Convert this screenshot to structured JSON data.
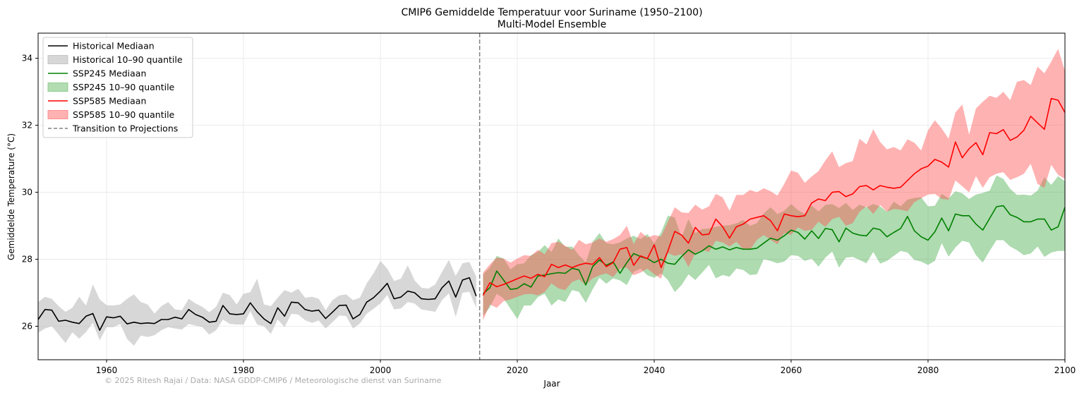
{
  "chart_data": {
    "type": "line",
    "title": "CMIP6 Gemiddelde Temperatuur voor Suriname (1950–2100)",
    "subtitle": "Multi-Model Ensemble",
    "xlabel": "Jaar",
    "ylabel": "Gemiddelde Temperature (°C)",
    "xlim": [
      1950,
      2100
    ],
    "ylim": [
      25.0,
      34.75
    ],
    "xticks": [
      1960,
      1980,
      2000,
      2020,
      2040,
      2060,
      2080,
      2100
    ],
    "yticks": [
      26,
      28,
      30,
      32,
      34
    ],
    "grid": true,
    "legend_position": "top-left",
    "transition_year": 2014.5,
    "credit": "© 2025 Ritesh Rajai / Data: NASA GDDP-CMIP6 / Meteorologische dienst van Suriname",
    "legend": [
      {
        "label": "Historical Mediaan",
        "kind": "line",
        "color": "#000000"
      },
      {
        "label": "Historical 10–90 quantile",
        "kind": "band",
        "color": "#bdbdbd"
      },
      {
        "label": "SSP245 Mediaan",
        "kind": "line",
        "color": "#008000"
      },
      {
        "label": "SSP245 10–90 quantile",
        "kind": "band",
        "color": "#7fc47f"
      },
      {
        "label": "SSP585 Mediaan",
        "kind": "line",
        "color": "#ff0000"
      },
      {
        "label": "SSP585 10–90 quantile",
        "kind": "band",
        "color": "#ff7f7f"
      },
      {
        "label": "Transition to Projections",
        "kind": "dashed",
        "color": "#808080"
      }
    ],
    "series": [
      {
        "name": "Historical",
        "line_color": "#000000",
        "band_color": "#bdbdbd",
        "band_opacity": 0.6,
        "x": [
          1950,
          1951,
          1952,
          1953,
          1954,
          1955,
          1956,
          1957,
          1958,
          1959,
          1960,
          1961,
          1962,
          1963,
          1964,
          1965,
          1966,
          1967,
          1968,
          1969,
          1970,
          1971,
          1972,
          1973,
          1974,
          1975,
          1976,
          1977,
          1978,
          1979,
          1980,
          1981,
          1982,
          1983,
          1984,
          1985,
          1986,
          1987,
          1988,
          1989,
          1990,
          1991,
          1992,
          1993,
          1994,
          1995,
          1996,
          1997,
          1998,
          1999,
          2000,
          2001,
          2002,
          2003,
          2004,
          2005,
          2006,
          2007,
          2008,
          2009,
          2010,
          2011,
          2012,
          2013,
          2014
        ],
        "median": [
          26.2,
          26.5,
          26.48,
          26.15,
          26.18,
          26.12,
          26.08,
          26.3,
          26.38,
          25.88,
          26.28,
          26.25,
          26.3,
          26.07,
          26.12,
          26.08,
          26.1,
          26.08,
          26.2,
          26.2,
          26.27,
          26.22,
          26.5,
          26.35,
          26.27,
          26.12,
          26.15,
          26.62,
          26.37,
          26.35,
          26.37,
          26.7,
          26.43,
          26.22,
          26.08,
          26.55,
          26.3,
          26.72,
          26.7,
          26.5,
          26.45,
          26.48,
          26.23,
          26.42,
          26.62,
          26.63,
          26.22,
          26.35,
          26.72,
          26.85,
          27.05,
          27.28,
          26.82,
          26.87,
          27.05,
          27.0,
          26.82,
          26.8,
          26.82,
          27.15,
          27.35,
          26.87,
          27.38,
          27.45,
          26.9
        ],
        "low": [
          25.8,
          25.93,
          26.0,
          25.75,
          25.5,
          25.82,
          25.63,
          25.83,
          26.1,
          25.58,
          25.97,
          25.97,
          26.07,
          25.62,
          25.42,
          25.72,
          25.68,
          25.73,
          25.88,
          25.97,
          25.93,
          25.9,
          26.07,
          26.02,
          25.97,
          25.75,
          25.88,
          26.2,
          26.07,
          26.05,
          26.05,
          26.45,
          26.05,
          26.0,
          25.77,
          26.2,
          25.97,
          26.37,
          26.35,
          26.18,
          26.1,
          26.17,
          25.93,
          26.12,
          26.32,
          26.3,
          25.93,
          26.08,
          26.37,
          26.52,
          26.68,
          26.93,
          26.5,
          26.53,
          26.72,
          26.68,
          26.5,
          26.47,
          26.43,
          26.78,
          26.98,
          26.28,
          27.0,
          27.03,
          26.55
        ],
        "high": [
          26.72,
          26.88,
          26.82,
          26.6,
          26.43,
          26.55,
          26.88,
          26.62,
          27.25,
          26.8,
          26.63,
          26.62,
          26.65,
          26.82,
          26.95,
          26.72,
          26.65,
          26.38,
          26.6,
          26.72,
          26.5,
          26.48,
          26.82,
          26.68,
          26.58,
          26.42,
          26.58,
          27.0,
          26.93,
          26.65,
          26.97,
          27.02,
          27.42,
          26.65,
          26.6,
          26.85,
          27.08,
          27.0,
          27.12,
          26.85,
          26.88,
          26.82,
          26.48,
          26.78,
          26.92,
          26.95,
          26.78,
          26.85,
          27.28,
          27.58,
          27.95,
          27.72,
          27.35,
          27.42,
          27.82,
          27.37,
          27.15,
          27.12,
          27.25,
          27.62,
          27.98,
          27.5,
          27.88,
          27.92,
          27.48
        ]
      },
      {
        "name": "SSP245",
        "line_color": "#008000",
        "band_color": "#4caf50",
        "band_opacity": 0.45,
        "x": [
          2015,
          2016,
          2017,
          2018,
          2019,
          2020,
          2021,
          2022,
          2023,
          2024,
          2025,
          2026,
          2027,
          2028,
          2029,
          2030,
          2031,
          2032,
          2033,
          2034,
          2035,
          2036,
          2037,
          2038,
          2039,
          2040,
          2041,
          2042,
          2043,
          2044,
          2045,
          2046,
          2047,
          2048,
          2049,
          2050,
          2051,
          2052,
          2053,
          2054,
          2055,
          2056,
          2057,
          2058,
          2059,
          2060,
          2061,
          2062,
          2063,
          2064,
          2065,
          2066,
          2067,
          2068,
          2069,
          2070,
          2071,
          2072,
          2073,
          2074,
          2075,
          2076,
          2077,
          2078,
          2079,
          2080,
          2081,
          2082,
          2083,
          2084,
          2085,
          2086,
          2087,
          2088,
          2089,
          2090,
          2091,
          2092,
          2093,
          2094,
          2095,
          2096,
          2097,
          2098,
          2099,
          2100
        ],
        "median": [
          26.97,
          27.15,
          27.65,
          27.38,
          27.1,
          27.13,
          27.27,
          27.17,
          27.5,
          27.53,
          27.57,
          27.6,
          27.58,
          27.73,
          27.68,
          27.23,
          27.78,
          27.98,
          27.82,
          27.92,
          27.58,
          27.9,
          28.17,
          28.08,
          28.02,
          27.9,
          28.0,
          27.88,
          27.85,
          28.08,
          28.28,
          28.15,
          28.25,
          28.4,
          28.3,
          28.37,
          28.28,
          28.35,
          28.3,
          28.3,
          28.33,
          28.48,
          28.63,
          28.57,
          28.7,
          28.87,
          28.8,
          28.6,
          28.85,
          28.62,
          28.92,
          28.88,
          28.52,
          28.93,
          28.78,
          28.72,
          28.7,
          28.93,
          28.88,
          28.67,
          28.8,
          28.92,
          29.28,
          28.85,
          28.67,
          28.57,
          28.82,
          29.23,
          28.85,
          29.35,
          29.3,
          29.3,
          29.05,
          28.87,
          29.22,
          29.57,
          29.6,
          29.33,
          29.25,
          29.12,
          29.12,
          29.2,
          29.2,
          28.87,
          28.97,
          29.55
        ],
        "low": [
          26.3,
          26.57,
          26.97,
          26.83,
          26.52,
          26.22,
          26.62,
          26.62,
          26.87,
          26.97,
          26.62,
          26.8,
          26.72,
          27.08,
          27.03,
          26.7,
          27.1,
          27.45,
          27.27,
          27.43,
          27.37,
          27.23,
          27.62,
          27.72,
          27.52,
          27.45,
          27.58,
          27.38,
          27.02,
          27.23,
          27.55,
          27.38,
          27.6,
          27.83,
          27.43,
          27.53,
          27.48,
          27.72,
          27.68,
          27.53,
          27.55,
          28.0,
          27.95,
          27.88,
          27.93,
          28.12,
          28.1,
          27.95,
          28.02,
          27.78,
          28.05,
          28.23,
          27.75,
          28.05,
          28.07,
          27.98,
          27.88,
          28.22,
          27.87,
          27.95,
          28.1,
          28.25,
          28.2,
          27.98,
          27.93,
          27.83,
          27.95,
          28.48,
          28.08,
          28.35,
          28.55,
          28.5,
          28.12,
          27.9,
          28.25,
          28.57,
          28.57,
          28.38,
          28.27,
          28.12,
          28.17,
          28.38,
          28.07,
          28.2,
          28.25,
          28.25
        ],
        "high": [
          27.55,
          27.75,
          28.1,
          28.02,
          27.7,
          27.85,
          27.88,
          28.12,
          28.22,
          28.42,
          28.22,
          28.62,
          28.37,
          28.38,
          28.12,
          27.9,
          28.52,
          28.78,
          28.48,
          28.45,
          28.5,
          28.62,
          28.7,
          28.6,
          28.75,
          28.47,
          28.8,
          29.3,
          29.25,
          28.65,
          29.2,
          28.78,
          28.9,
          28.92,
          28.97,
          29.0,
          29.02,
          29.07,
          29.17,
          29.0,
          29.08,
          29.37,
          29.55,
          29.35,
          29.45,
          29.65,
          29.47,
          29.35,
          29.6,
          29.43,
          29.62,
          29.65,
          29.53,
          29.68,
          29.47,
          29.63,
          29.55,
          29.65,
          29.58,
          29.42,
          29.72,
          29.58,
          29.78,
          29.83,
          29.85,
          29.58,
          29.6,
          29.95,
          29.82,
          30.03,
          29.97,
          29.8,
          29.93,
          29.98,
          30.05,
          30.5,
          30.4,
          30.1,
          29.92,
          29.93,
          29.9,
          30.05,
          30.45,
          30.22,
          30.48,
          30.33
        ]
      },
      {
        "name": "SSP585",
        "line_color": "#ff0000",
        "band_color": "#ff5555",
        "band_opacity": 0.45,
        "x": [
          2015,
          2016,
          2017,
          2018,
          2019,
          2020,
          2021,
          2022,
          2023,
          2024,
          2025,
          2026,
          2027,
          2028,
          2029,
          2030,
          2031,
          2032,
          2033,
          2034,
          2035,
          2036,
          2037,
          2038,
          2039,
          2040,
          2041,
          2042,
          2043,
          2044,
          2045,
          2046,
          2047,
          2048,
          2049,
          2050,
          2051,
          2052,
          2053,
          2054,
          2055,
          2056,
          2057,
          2058,
          2059,
          2060,
          2061,
          2062,
          2063,
          2064,
          2065,
          2066,
          2067,
          2068,
          2069,
          2070,
          2071,
          2072,
          2073,
          2074,
          2075,
          2076,
          2077,
          2078,
          2079,
          2080,
          2081,
          2082,
          2083,
          2084,
          2085,
          2086,
          2087,
          2088,
          2089,
          2090,
          2091,
          2092,
          2093,
          2094,
          2095,
          2096,
          2097,
          2098,
          2099,
          2100
        ],
        "median": [
          26.92,
          27.3,
          27.18,
          27.25,
          27.33,
          27.42,
          27.5,
          27.43,
          27.55,
          27.48,
          27.85,
          27.75,
          27.83,
          27.75,
          27.83,
          27.88,
          27.85,
          28.05,
          27.78,
          27.9,
          28.3,
          28.35,
          27.82,
          28.1,
          28.02,
          28.43,
          27.75,
          28.25,
          28.83,
          28.72,
          28.48,
          28.95,
          28.73,
          28.75,
          29.2,
          28.97,
          28.63,
          28.97,
          29.05,
          29.2,
          29.25,
          29.3,
          29.15,
          28.85,
          29.35,
          29.3,
          29.27,
          29.3,
          29.68,
          29.8,
          29.75,
          30.0,
          30.02,
          29.87,
          29.95,
          30.17,
          30.2,
          30.07,
          30.2,
          30.15,
          30.12,
          30.15,
          30.35,
          30.55,
          30.7,
          30.78,
          30.98,
          30.9,
          30.75,
          31.5,
          31.03,
          31.3,
          31.48,
          31.12,
          31.78,
          31.75,
          31.87,
          31.55,
          31.65,
          31.85,
          32.27,
          32.07,
          31.88,
          32.8,
          32.75,
          32.38
        ],
        "low": [
          26.18,
          26.65,
          26.55,
          26.75,
          26.8,
          26.88,
          26.95,
          26.97,
          26.92,
          27.02,
          27.28,
          27.13,
          27.08,
          27.32,
          27.4,
          27.23,
          27.43,
          27.52,
          27.58,
          27.47,
          27.72,
          27.75,
          27.52,
          27.6,
          27.72,
          27.55,
          27.42,
          28.18,
          28.1,
          28.15,
          27.77,
          28.18,
          28.28,
          28.22,
          28.55,
          28.5,
          28.38,
          28.52,
          28.3,
          28.28,
          28.58,
          28.72,
          28.58,
          28.45,
          28.78,
          28.73,
          28.95,
          28.85,
          28.88,
          29.12,
          28.97,
          29.2,
          29.27,
          29.0,
          29.08,
          29.42,
          29.58,
          29.35,
          29.62,
          29.42,
          29.5,
          29.48,
          29.43,
          29.7,
          29.82,
          29.93,
          29.95,
          29.8,
          29.78,
          30.35,
          30.18,
          30.0,
          30.48,
          30.13,
          30.45,
          30.55,
          30.6,
          30.37,
          30.45,
          30.55,
          30.85,
          30.25,
          30.13,
          30.82,
          30.52,
          30.4
        ],
        "high": [
          27.6,
          27.85,
          28.05,
          28.02,
          27.9,
          28.02,
          28.12,
          28.1,
          28.28,
          28.15,
          28.48,
          28.52,
          28.4,
          28.28,
          28.58,
          28.45,
          28.5,
          28.62,
          28.52,
          28.6,
          28.72,
          29.0,
          28.45,
          28.82,
          28.65,
          28.72,
          28.68,
          29.12,
          29.55,
          29.4,
          29.38,
          29.63,
          29.48,
          29.58,
          29.95,
          29.85,
          29.45,
          29.92,
          29.92,
          30.07,
          30.0,
          30.12,
          30.03,
          29.9,
          30.25,
          30.65,
          30.58,
          30.28,
          30.47,
          30.63,
          30.95,
          31.22,
          30.75,
          30.87,
          30.93,
          31.6,
          31.43,
          31.88,
          31.5,
          31.28,
          31.35,
          31.25,
          31.58,
          31.48,
          31.25,
          31.85,
          32.15,
          31.9,
          31.6,
          32.38,
          32.62,
          31.72,
          32.5,
          32.7,
          32.88,
          32.82,
          33.0,
          32.75,
          33.3,
          33.35,
          33.2,
          33.75,
          33.55,
          33.9,
          34.28,
          33.62
        ]
      }
    ]
  }
}
